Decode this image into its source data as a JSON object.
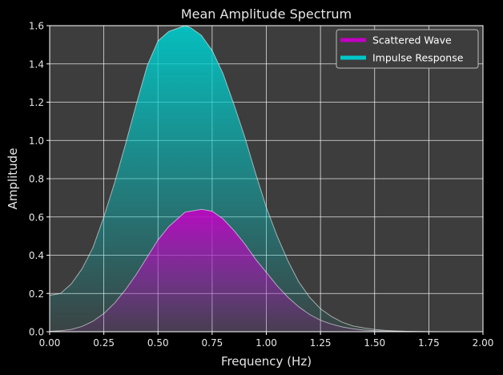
{
  "chart_data": {
    "type": "area",
    "title": "Mean Amplitude Spectrum",
    "xlabel": "Frequency (Hz)",
    "ylabel": "Amplitude",
    "xlim": [
      0,
      2
    ],
    "ylim": [
      0,
      1.6
    ],
    "x_ticks": [
      "0.00",
      "0.25",
      "0.50",
      "0.75",
      "1.00",
      "1.25",
      "1.50",
      "1.75",
      "2.00"
    ],
    "y_ticks": [
      "0.0",
      "0.2",
      "0.4",
      "0.6",
      "0.8",
      "1.0",
      "1.2",
      "1.4",
      "1.6"
    ],
    "grid": true,
    "legend_position": "top-right",
    "background": "#3d3d3d",
    "x": [
      0.0,
      0.05,
      0.1,
      0.15,
      0.2,
      0.25,
      0.3,
      0.35,
      0.4,
      0.45,
      0.5,
      0.55,
      0.6,
      0.625,
      0.65,
      0.7,
      0.75,
      0.8,
      0.85,
      0.9,
      0.95,
      1.0,
      1.05,
      1.1,
      1.15,
      1.2,
      1.25,
      1.3,
      1.35,
      1.4,
      1.45,
      1.5,
      1.55,
      1.6,
      1.65,
      1.7,
      1.75,
      1.8,
      1.9,
      2.0
    ],
    "series": [
      {
        "name": "Impulse Response",
        "color": "#00c8c8",
        "values": [
          0.19,
          0.2,
          0.25,
          0.33,
          0.44,
          0.6,
          0.78,
          0.98,
          1.19,
          1.39,
          1.52,
          1.57,
          1.59,
          1.6,
          1.59,
          1.55,
          1.47,
          1.35,
          1.19,
          1.02,
          0.83,
          0.65,
          0.5,
          0.37,
          0.26,
          0.18,
          0.12,
          0.08,
          0.05,
          0.03,
          0.02,
          0.012,
          0.007,
          0.004,
          0.002,
          0.001,
          0.0005,
          0.0002,
          0.0001,
          0.0
        ]
      },
      {
        "name": "Scattered Wave",
        "color": "#c000c0",
        "values": [
          0.002,
          0.005,
          0.012,
          0.028,
          0.055,
          0.095,
          0.15,
          0.22,
          0.3,
          0.39,
          0.48,
          0.55,
          0.6,
          0.625,
          0.63,
          0.64,
          0.63,
          0.59,
          0.53,
          0.46,
          0.38,
          0.31,
          0.24,
          0.18,
          0.13,
          0.09,
          0.06,
          0.04,
          0.025,
          0.015,
          0.009,
          0.005,
          0.003,
          0.0015,
          0.0008,
          0.0004,
          0.0002,
          0.0001,
          0.0,
          0.0
        ]
      }
    ]
  }
}
